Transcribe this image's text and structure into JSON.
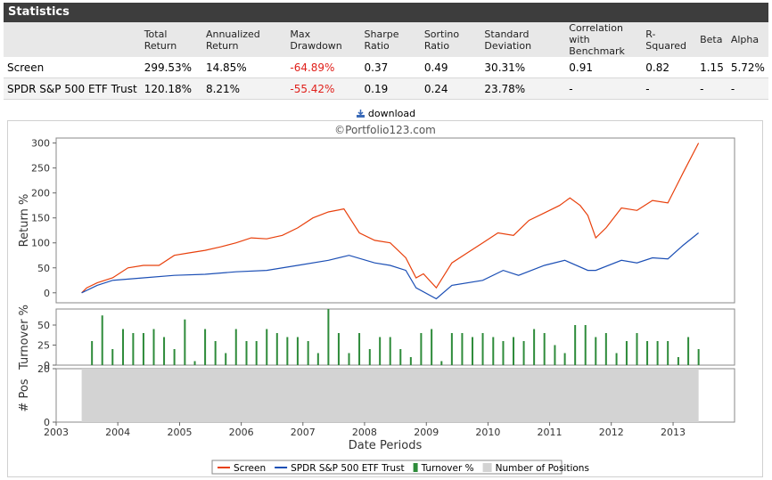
{
  "header": {
    "title": "Statistics"
  },
  "stats": {
    "columns": [
      "",
      "Total Return",
      "Annualized Return",
      "Max Drawdown",
      "Sharpe Ratio",
      "Sortino Ratio",
      "Standard Deviation",
      "Correlation with Benchmark",
      "R-Squared",
      "Beta",
      "Alpha"
    ],
    "rows": [
      {
        "name": "Screen",
        "total_return": "299.53%",
        "annualized_return": "14.85%",
        "max_drawdown": "-64.89%",
        "sharpe": "0.37",
        "sortino": "0.49",
        "std_dev": "30.31%",
        "correlation": "0.91",
        "r_squared": "0.82",
        "beta": "1.15",
        "alpha": "5.72%"
      },
      {
        "name": "SPDR S&P 500 ETF Trust",
        "total_return": "120.18%",
        "annualized_return": "8.21%",
        "max_drawdown": "-55.42%",
        "sharpe": "0.19",
        "sortino": "0.24",
        "std_dev": "23.78%",
        "correlation": "-",
        "r_squared": "-",
        "beta": "-",
        "alpha": "-"
      }
    ]
  },
  "download_label": "download",
  "chart_data": {
    "type": "line",
    "watermark": "©Portfolio123.com",
    "xlabel": "Date Periods",
    "x_ticks": [
      "2003",
      "2004",
      "2005",
      "2006",
      "2007",
      "2008",
      "2009",
      "2010",
      "2011",
      "2012",
      "2013"
    ],
    "xlim": [
      "2003-01-01",
      "2013-12-31"
    ],
    "return_panel": {
      "ylabel": "Return %",
      "ylim": [
        -20,
        310
      ],
      "y_ticks": [
        0,
        50,
        100,
        150,
        200,
        250,
        300
      ],
      "series": [
        {
          "name": "Screen",
          "color": "#e8400c",
          "x": [
            "2003-06-01",
            "2003-07-01",
            "2003-09-01",
            "2003-12-01",
            "2004-03-01",
            "2004-06-01",
            "2004-09-01",
            "2004-12-01",
            "2005-03-01",
            "2005-06-01",
            "2005-09-01",
            "2005-12-01",
            "2006-03-01",
            "2006-06-01",
            "2006-09-01",
            "2006-12-01",
            "2007-03-01",
            "2007-06-01",
            "2007-09-01",
            "2007-12-01",
            "2008-03-01",
            "2008-06-01",
            "2008-09-01",
            "2008-11-01",
            "2008-12-15",
            "2009-03-01",
            "2009-06-01",
            "2009-09-01",
            "2009-12-01",
            "2010-03-01",
            "2010-06-01",
            "2010-09-01",
            "2010-12-01",
            "2011-03-01",
            "2011-05-01",
            "2011-07-01",
            "2011-08-15",
            "2011-10-01",
            "2011-12-01",
            "2012-03-01",
            "2012-06-01",
            "2012-09-01",
            "2012-12-01",
            "2013-03-01",
            "2013-06-01"
          ],
          "values": [
            0,
            10,
            20,
            30,
            50,
            55,
            55,
            75,
            80,
            85,
            92,
            100,
            110,
            108,
            115,
            130,
            150,
            162,
            168,
            120,
            105,
            100,
            70,
            30,
            38,
            10,
            60,
            80,
            100,
            120,
            115,
            145,
            160,
            175,
            190,
            175,
            155,
            110,
            130,
            170,
            165,
            185,
            180,
            240,
            300
          ]
        },
        {
          "name": "SPDR S&P 500 ETF Trust",
          "color": "#1c4fb5",
          "x": [
            "2003-06-01",
            "2003-09-01",
            "2003-12-01",
            "2004-06-01",
            "2004-12-01",
            "2005-06-01",
            "2005-12-01",
            "2006-06-01",
            "2006-12-01",
            "2007-06-01",
            "2007-10-01",
            "2008-03-01",
            "2008-06-01",
            "2008-09-01",
            "2008-11-01",
            "2009-03-01",
            "2009-06-01",
            "2009-12-01",
            "2010-04-01",
            "2010-07-01",
            "2010-12-01",
            "2011-04-01",
            "2011-08-15",
            "2011-10-01",
            "2012-03-01",
            "2012-06-01",
            "2012-09-01",
            "2012-12-01",
            "2013-03-01",
            "2013-06-01"
          ],
          "values": [
            0,
            15,
            25,
            30,
            35,
            37,
            42,
            45,
            55,
            65,
            75,
            60,
            55,
            45,
            10,
            -12,
            15,
            25,
            45,
            35,
            55,
            65,
            45,
            45,
            65,
            60,
            70,
            68,
            95,
            120
          ]
        }
      ]
    },
    "turnover_panel": {
      "ylabel": "Turnover %",
      "ylim": [
        0,
        70
      ],
      "y_ticks": [
        0,
        25,
        50
      ],
      "series_name": "Turnover %",
      "color": "#2e8b3a",
      "x": [
        "2003-08-01",
        "2003-10-01",
        "2003-12-01",
        "2004-02-01",
        "2004-04-01",
        "2004-06-01",
        "2004-08-01",
        "2004-10-01",
        "2004-12-01",
        "2005-02-01",
        "2005-04-01",
        "2005-06-01",
        "2005-08-01",
        "2005-10-01",
        "2005-12-01",
        "2006-02-01",
        "2006-04-01",
        "2006-06-01",
        "2006-08-01",
        "2006-10-01",
        "2006-12-01",
        "2007-02-01",
        "2007-04-01",
        "2007-06-01",
        "2007-08-01",
        "2007-10-01",
        "2007-12-01",
        "2008-02-01",
        "2008-04-01",
        "2008-06-01",
        "2008-08-01",
        "2008-10-01",
        "2008-12-01",
        "2009-02-01",
        "2009-04-01",
        "2009-06-01",
        "2009-08-01",
        "2009-10-01",
        "2009-12-01",
        "2010-02-01",
        "2010-04-01",
        "2010-06-01",
        "2010-08-01",
        "2010-10-01",
        "2010-12-01",
        "2011-02-01",
        "2011-04-01",
        "2011-06-01",
        "2011-08-01",
        "2011-10-01",
        "2011-12-01",
        "2012-02-01",
        "2012-04-01",
        "2012-06-01",
        "2012-08-01",
        "2012-10-01",
        "2012-12-01",
        "2013-02-01",
        "2013-04-01",
        "2013-06-01"
      ],
      "values": [
        30,
        62,
        20,
        45,
        40,
        40,
        45,
        35,
        20,
        57,
        5,
        45,
        30,
        15,
        45,
        30,
        30,
        45,
        40,
        35,
        35,
        30,
        15,
        70,
        40,
        15,
        40,
        20,
        35,
        35,
        20,
        10,
        40,
        45,
        5,
        40,
        40,
        35,
        40,
        35,
        30,
        35,
        30,
        45,
        40,
        25,
        15,
        50,
        50,
        35,
        40,
        15,
        30,
        40,
        30,
        30,
        30,
        10,
        35,
        20
      ]
    },
    "positions_panel": {
      "ylabel": "# Pos",
      "ylim": [
        0,
        20
      ],
      "y_ticks": [
        0,
        20
      ],
      "series_name": "Number of Positions",
      "color": "#d3d3d3",
      "x": [
        "2003-06-01",
        "2013-06-01"
      ],
      "values": [
        20,
        20
      ]
    },
    "legend": {
      "placement": "bottom",
      "items": [
        {
          "label": "Screen",
          "color": "#e8400c",
          "kind": "line"
        },
        {
          "label": "SPDR S&P 500 ETF Trust",
          "color": "#1c4fb5",
          "kind": "line"
        },
        {
          "label": "Turnover %",
          "color": "#2e8b3a",
          "kind": "bar"
        },
        {
          "label": "Number of Positions",
          "color": "#d3d3d3",
          "kind": "area"
        }
      ]
    }
  }
}
